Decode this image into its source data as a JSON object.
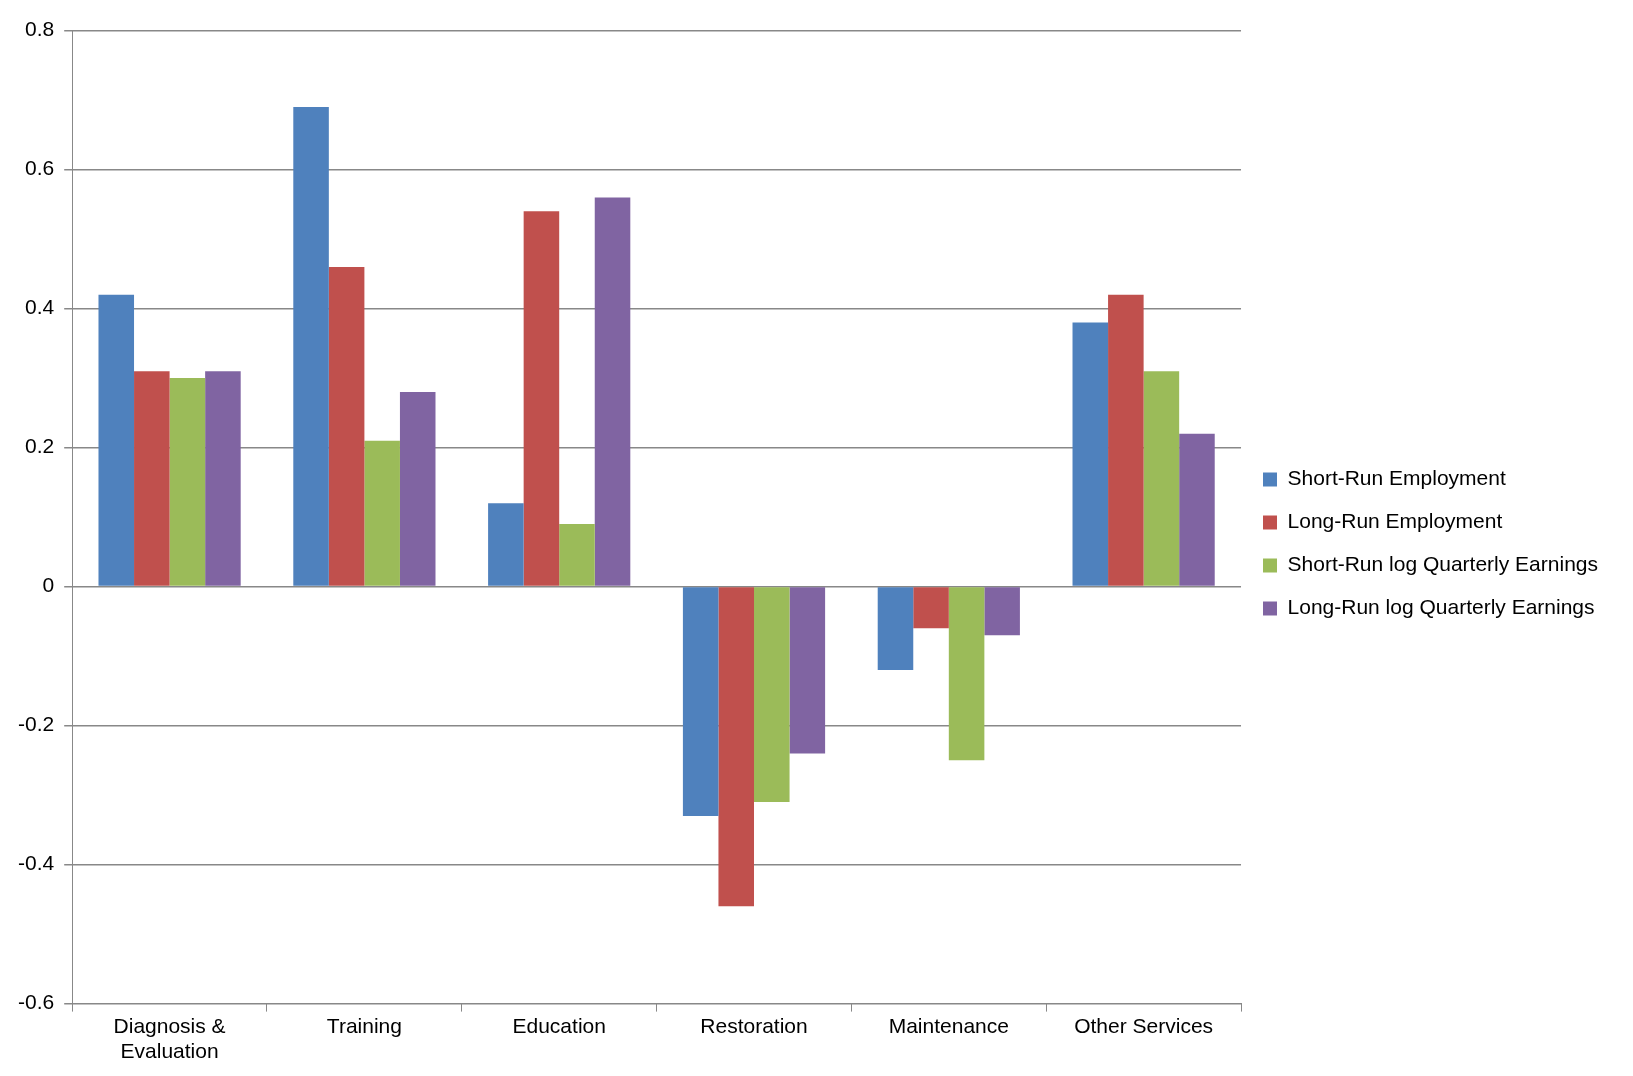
{
  "chart_data": {
    "type": "bar",
    "categories": [
      "Diagnosis & Evaluation",
      "Training",
      "Education",
      "Restoration",
      "Maintenance",
      "Other Services"
    ],
    "series": [
      {
        "name": "Short-Run Employment",
        "color": "#4f81bd",
        "values": [
          0.42,
          0.69,
          0.12,
          -0.33,
          -0.12,
          0.38
        ]
      },
      {
        "name": "Long-Run Employment",
        "color": "#c0504d",
        "values": [
          0.31,
          0.46,
          0.54,
          -0.46,
          -0.06,
          0.42
        ]
      },
      {
        "name": "Short-Run log Quarterly Earnings",
        "color": "#9bbb59",
        "values": [
          0.3,
          0.21,
          0.09,
          -0.31,
          -0.25,
          0.31
        ]
      },
      {
        "name": "Long-Run log Quarterly Earnings",
        "color": "#8064a2",
        "values": [
          0.31,
          0.28,
          0.56,
          -0.24,
          -0.07,
          0.22
        ]
      }
    ],
    "ylim": [
      -0.6,
      0.8
    ],
    "yticks": [
      -0.6,
      -0.4,
      -0.2,
      0,
      0.2,
      0.4,
      0.6,
      0.8
    ],
    "grid": "y",
    "legend": "right"
  }
}
